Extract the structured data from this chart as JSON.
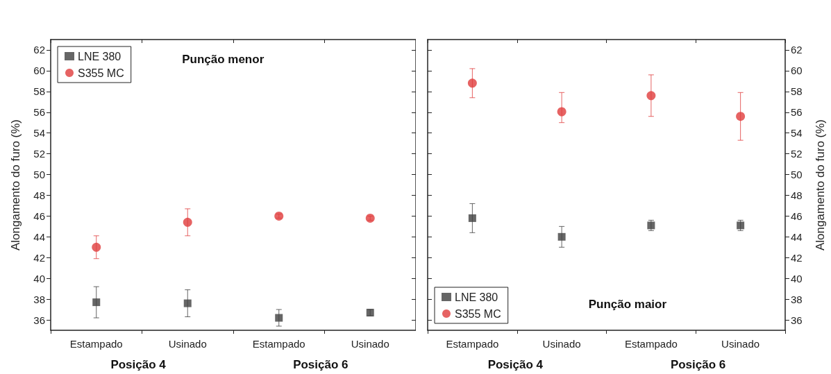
{
  "chart_data": [
    {
      "type": "scatter",
      "ylabel": "Alongamento do furo (%)",
      "categories": [
        "Estampado",
        "Usinado",
        "Estampado",
        "Usinado"
      ],
      "ylim": [
        35,
        63
      ],
      "yticks": [
        36,
        38,
        40,
        42,
        44,
        46,
        48,
        50,
        52,
        54,
        56,
        58,
        60,
        62
      ],
      "legend": "top left",
      "annotations": [
        "Punção menor",
        "Posição 4",
        "Posição 6"
      ],
      "series": [
        {
          "name": "LNE 380",
          "color": "#404040",
          "marker": "square",
          "values": [
            37.7,
            37.6,
            36.2,
            36.7
          ],
          "errors": [
            1.5,
            1.3,
            0.8,
            0.3
          ]
        },
        {
          "name": "S355 MC",
          "color": "#e03c3c",
          "marker": "circle",
          "values": [
            43.0,
            45.4,
            46.0,
            45.8
          ],
          "errors": [
            1.1,
            1.3,
            0.2,
            0.2
          ]
        }
      ]
    },
    {
      "type": "scatter",
      "y2label": "Alongamento do furo (%)",
      "categories": [
        "Estampado",
        "Usinado",
        "Estampado",
        "Usinado"
      ],
      "y2lim": [
        35,
        63
      ],
      "y2ticks": [
        36,
        38,
        40,
        42,
        44,
        46,
        48,
        50,
        52,
        54,
        56,
        58,
        60,
        62
      ],
      "legend": "bottom left",
      "annotations": [
        "Punção maior",
        "Posição 4",
        "Posição 6"
      ],
      "series": [
        {
          "name": "LNE 380",
          "color": "#404040",
          "marker": "square",
          "axis": "y2",
          "values": [
            45.8,
            44.0,
            45.1,
            45.1
          ],
          "errors": [
            1.4,
            1.0,
            0.5,
            0.5
          ]
        },
        {
          "name": "S355 MC",
          "color": "#e03c3c",
          "marker": "circle",
          "axis": "y2",
          "values": [
            58.8,
            56.05,
            57.6,
            55.6
          ],
          "errors": [
            1.4,
            [
              55.0,
              57.9
            ],
            2.0,
            2.3
          ]
        }
      ]
    }
  ]
}
